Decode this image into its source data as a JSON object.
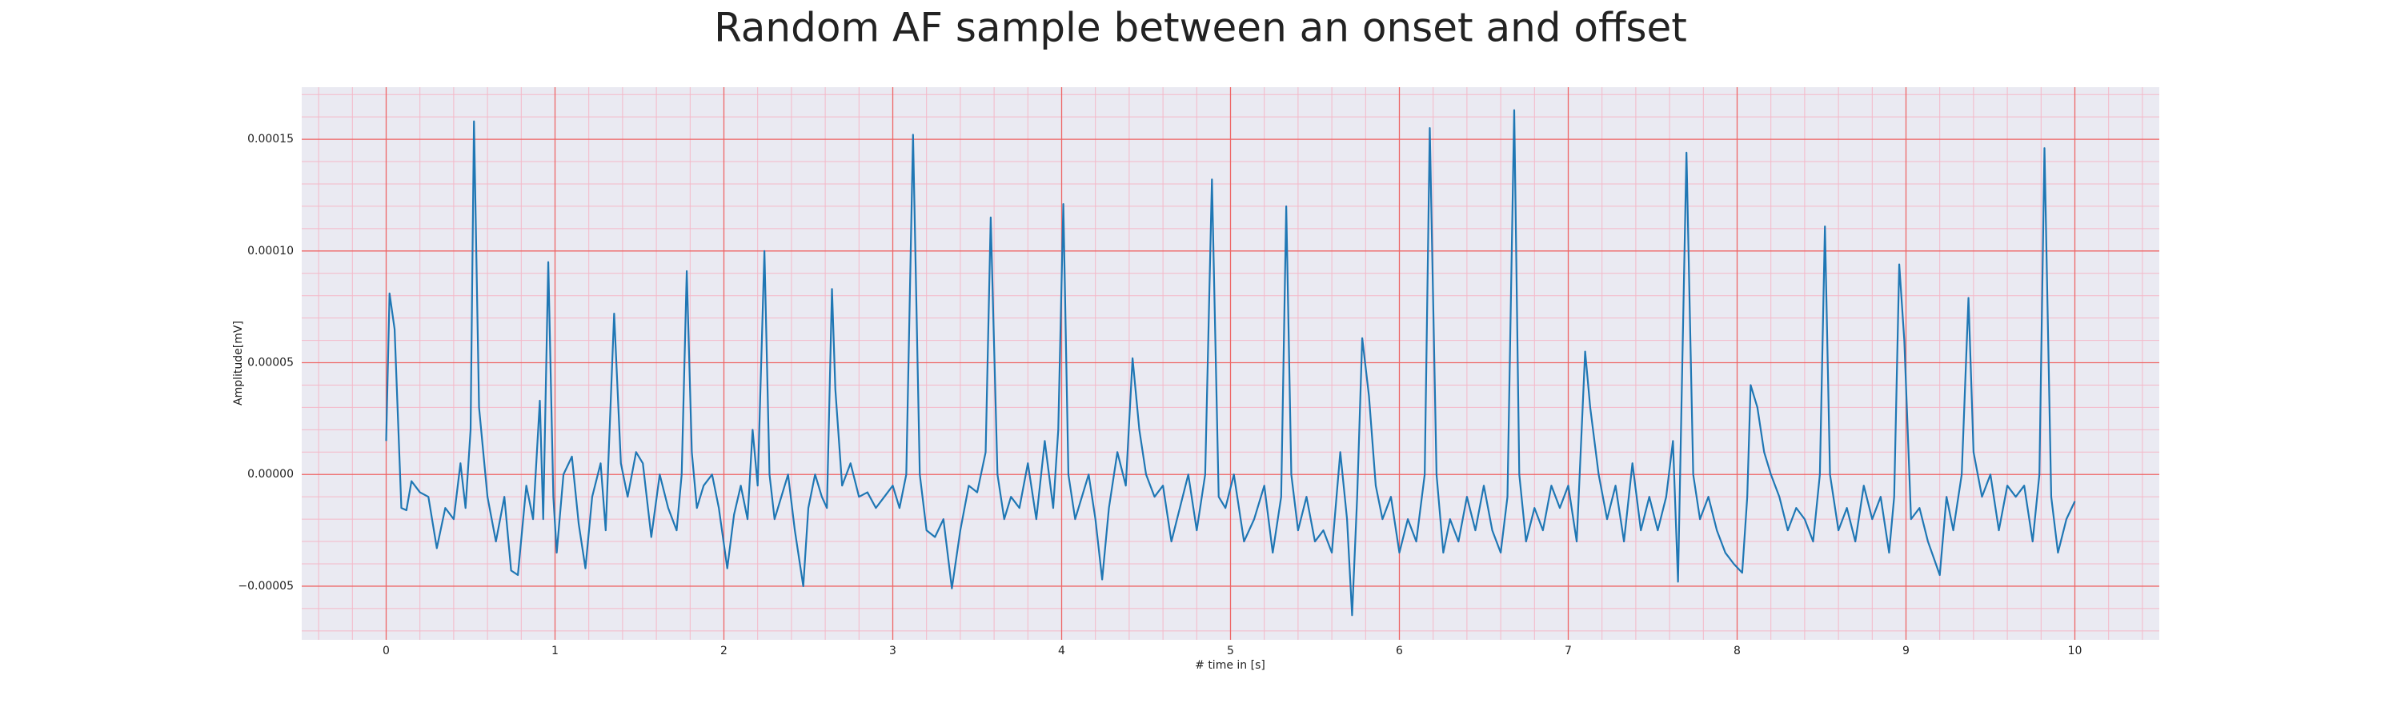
{
  "chart_data": {
    "type": "line",
    "title": "Random AF sample between an onset and offset",
    "xlabel": "# time in [s]",
    "ylabel": "Amplitude[mV]",
    "color": "#1f77b4",
    "grid": true,
    "minor_grid": true,
    "xlim": [
      -0.5,
      10.5
    ],
    "xticks": [
      0,
      1,
      2,
      3,
      4,
      5,
      6,
      7,
      8,
      9,
      10
    ],
    "ylim": [
      -7.4e-05,
      0.0001733
    ],
    "yticks": [
      {
        "value": -5e-05,
        "label": "−0.00005"
      },
      {
        "value": 0,
        "label": "0.00000"
      },
      {
        "value": 5e-05,
        "label": "0.00005"
      },
      {
        "value": 0.0001,
        "label": "0.00010"
      },
      {
        "value": 0.00015,
        "label": "0.00015"
      }
    ],
    "x": [
      0,
      0.02,
      0.05,
      0.09,
      0.12,
      0.15,
      0.2,
      0.25,
      0.3,
      0.35,
      0.4,
      0.44,
      0.47,
      0.5,
      0.52,
      0.55,
      0.6,
      0.65,
      0.7,
      0.74,
      0.78,
      0.83,
      0.87,
      0.91,
      0.93,
      0.96,
      0.99,
      1.01,
      1.05,
      1.1,
      1.14,
      1.18,
      1.22,
      1.27,
      1.3,
      1.35,
      1.39,
      1.43,
      1.48,
      1.52,
      1.57,
      1.62,
      1.67,
      1.72,
      1.75,
      1.78,
      1.81,
      1.84,
      1.88,
      1.93,
      1.97,
      2.02,
      2.06,
      2.1,
      2.14,
      2.17,
      2.2,
      2.24,
      2.27,
      2.3,
      2.34,
      2.38,
      2.42,
      2.47,
      2.5,
      2.54,
      2.58,
      2.61,
      2.64,
      2.66,
      2.7,
      2.75,
      2.8,
      2.85,
      2.9,
      2.95,
      3.0,
      3.04,
      3.08,
      3.12,
      3.16,
      3.2,
      3.25,
      3.3,
      3.35,
      3.4,
      3.45,
      3.5,
      3.55,
      3.58,
      3.62,
      3.66,
      3.7,
      3.75,
      3.8,
      3.85,
      3.9,
      3.95,
      3.98,
      4.01,
      4.04,
      4.08,
      4.12,
      4.16,
      4.2,
      4.24,
      4.28,
      4.33,
      4.38,
      4.42,
      4.46,
      4.5,
      4.55,
      4.6,
      4.65,
      4.7,
      4.75,
      4.8,
      4.85,
      4.89,
      4.93,
      4.97,
      5.02,
      5.08,
      5.14,
      5.2,
      5.25,
      5.3,
      5.33,
      5.36,
      5.4,
      5.45,
      5.5,
      5.55,
      5.6,
      5.65,
      5.69,
      5.72,
      5.75,
      5.78,
      5.82,
      5.86,
      5.9,
      5.95,
      6.0,
      6.05,
      6.1,
      6.15,
      6.18,
      6.22,
      6.26,
      6.3,
      6.35,
      6.4,
      6.45,
      6.5,
      6.55,
      6.6,
      6.64,
      6.68,
      6.71,
      6.75,
      6.8,
      6.85,
      6.9,
      6.95,
      7.0,
      7.05,
      7.1,
      7.13,
      7.18,
      7.23,
      7.28,
      7.33,
      7.38,
      7.43,
      7.48,
      7.53,
      7.58,
      7.62,
      7.65,
      7.7,
      7.74,
      7.78,
      7.83,
      7.88,
      7.93,
      7.98,
      8.03,
      8.06,
      8.08,
      8.12,
      8.16,
      8.2,
      8.25,
      8.3,
      8.35,
      8.4,
      8.45,
      8.49,
      8.52,
      8.55,
      8.6,
      8.65,
      8.7,
      8.75,
      8.8,
      8.85,
      8.9,
      8.93,
      8.96,
      8.99,
      9.03,
      9.08,
      9.13,
      9.2,
      9.24,
      9.28,
      9.33,
      9.37,
      9.4,
      9.45,
      9.5,
      9.55,
      9.6,
      9.65,
      9.7,
      9.75,
      9.79,
      9.82,
      9.86,
      9.9,
      9.95,
      10.0
    ],
    "values": [
      1.5e-05,
      8.1e-05,
      6.5e-05,
      -1.5e-05,
      -1.6e-05,
      -3e-06,
      -8e-06,
      -1e-05,
      -3.3e-05,
      -1.5e-05,
      -2e-05,
      5e-06,
      -1.5e-05,
      2e-05,
      0.000158,
      3e-05,
      -1e-05,
      -3e-05,
      -1e-05,
      -4.3e-05,
      -4.5e-05,
      -5e-06,
      -2e-05,
      3.3e-05,
      -2e-05,
      9.5e-05,
      -1e-05,
      -3.5e-05,
      0,
      8e-06,
      -2.2e-05,
      -4.2e-05,
      -1e-05,
      5e-06,
      -2.5e-05,
      7.2e-05,
      5e-06,
      -1e-05,
      1e-05,
      5e-06,
      -2.8e-05,
      0,
      -1.5e-05,
      -2.5e-05,
      0,
      9.1e-05,
      1e-05,
      -1.5e-05,
      -5e-06,
      0,
      -1.5e-05,
      -4.2e-05,
      -1.8e-05,
      -5e-06,
      -2e-05,
      2e-05,
      -5e-06,
      0.0001,
      0,
      -2e-05,
      -1e-05,
      0,
      -2.5e-05,
      -5e-05,
      -1.5e-05,
      0,
      -1e-05,
      -1.5e-05,
      8.3e-05,
      3.8e-05,
      -5e-06,
      5e-06,
      -1e-05,
      -8e-06,
      -1.5e-05,
      -1e-05,
      -5e-06,
      -1.5e-05,
      0,
      0.000152,
      0,
      -2.5e-05,
      -2.8e-05,
      -2e-05,
      -5.1e-05,
      -2.5e-05,
      -5e-06,
      -8e-06,
      1e-05,
      0.000115,
      0,
      -2e-05,
      -1e-05,
      -1.5e-05,
      5e-06,
      -2e-05,
      1.5e-05,
      -1.5e-05,
      2e-05,
      0.000121,
      0,
      -2e-05,
      -1e-05,
      0,
      -2e-05,
      -4.7e-05,
      -1.5e-05,
      1e-05,
      -5e-06,
      5.2e-05,
      2e-05,
      0,
      -1e-05,
      -5e-06,
      -3e-05,
      -1.5e-05,
      0,
      -2.5e-05,
      0,
      0.000132,
      -1e-05,
      -1.5e-05,
      0,
      -3e-05,
      -2e-05,
      -5e-06,
      -3.5e-05,
      -1e-05,
      0.00012,
      0,
      -2.5e-05,
      -1e-05,
      -3e-05,
      -2.5e-05,
      -3.5e-05,
      1e-05,
      -2e-05,
      -6.3e-05,
      -1e-05,
      6.1e-05,
      3.5e-05,
      -5e-06,
      -2e-05,
      -1e-05,
      -3.5e-05,
      -2e-05,
      -3e-05,
      0,
      0.000155,
      0,
      -3.5e-05,
      -2e-05,
      -3e-05,
      -1e-05,
      -2.5e-05,
      -5e-06,
      -2.5e-05,
      -3.5e-05,
      -1e-05,
      0.000163,
      0,
      -3e-05,
      -1.5e-05,
      -2.5e-05,
      -5e-06,
      -1.5e-05,
      -5e-06,
      -3e-05,
      5.5e-05,
      3e-05,
      0,
      -2e-05,
      -5e-06,
      -3e-05,
      5e-06,
      -2.5e-05,
      -1e-05,
      -2.5e-05,
      -1e-05,
      1.5e-05,
      -4.8e-05,
      0.000144,
      0,
      -2e-05,
      -1e-05,
      -2.5e-05,
      -3.5e-05,
      -4e-05,
      -4.4e-05,
      -1e-05,
      4e-05,
      3e-05,
      1e-05,
      0,
      -1e-05,
      -2.5e-05,
      -1.5e-05,
      -2e-05,
      -3e-05,
      0,
      0.000111,
      0,
      -2.5e-05,
      -1.5e-05,
      -3e-05,
      -5e-06,
      -2e-05,
      -1e-05,
      -3.5e-05,
      -1e-05,
      9.4e-05,
      6e-05,
      -2e-05,
      -1.5e-05,
      -3e-05,
      -4.5e-05,
      -1e-05,
      -2.5e-05,
      0,
      7.9e-05,
      1e-05,
      -1e-05,
      0,
      -2.5e-05,
      -5e-06,
      -1e-05,
      -5e-06,
      -3e-05,
      0,
      0.000146,
      -1e-05,
      -3.5e-05,
      -2e-05,
      -1.2e-05
    ]
  }
}
